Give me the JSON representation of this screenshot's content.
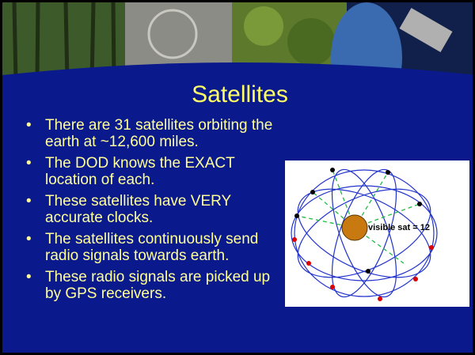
{
  "title": "Satellites",
  "bullets": [
    "There are 31 satellites orbiting the earth at ~12,600 miles.",
    "The DOD knows the EXACT location of each.",
    "These satellites have VERY accurate clocks.",
    "The satellites continuously send radio signals towards earth.",
    "These radio signals are picked up by GPS receivers."
  ],
  "figure": {
    "label": "visible sat = 12"
  }
}
